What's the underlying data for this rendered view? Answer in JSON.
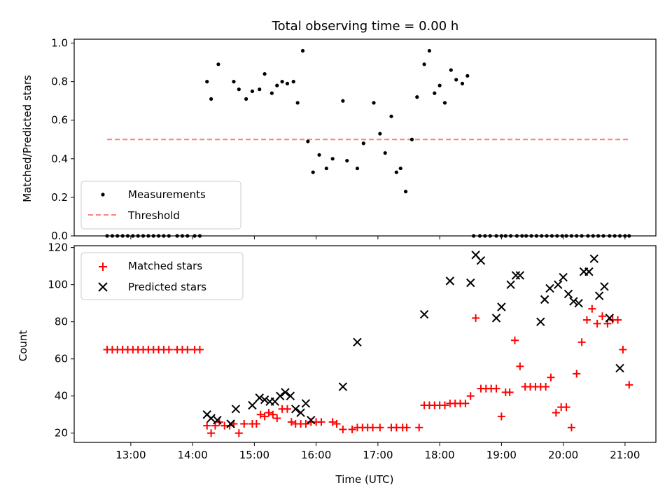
{
  "chart_data": [
    {
      "type": "scatter",
      "title": "Total observing time = 0.00 h",
      "xlabel": "",
      "ylabel": "Matched/Predicted stars",
      "ylim": [
        0,
        1.02
      ],
      "yticks": [
        0.0,
        0.2,
        0.4,
        0.6,
        0.8,
        1.0
      ],
      "ytick_labels": [
        "0.0",
        "0.2",
        "0.4",
        "0.6",
        "0.8",
        "1.0"
      ],
      "grid": false,
      "legend_position": "lower-left",
      "series": [
        {
          "name": "Measurements",
          "kind": "points",
          "marker": "dot",
          "color": "#000000",
          "x": [
            "12:37",
            "12:42",
            "12:47",
            "12:52",
            "12:57",
            "13:02",
            "13:07",
            "13:12",
            "13:17",
            "13:22",
            "13:27",
            "13:32",
            "13:37",
            "13:45",
            "13:50",
            "13:55",
            "14:02",
            "14:07",
            "14:14",
            "14:18",
            "14:25",
            "14:40",
            "14:45",
            "14:52",
            "14:58",
            "15:05",
            "15:10",
            "15:17",
            "15:22",
            "15:27",
            "15:32",
            "15:38",
            "15:42",
            "15:47",
            "15:52",
            "15:57",
            "16:03",
            "16:10",
            "16:16",
            "16:26",
            "16:30",
            "16:40",
            "16:46",
            "16:56",
            "17:02",
            "17:07",
            "17:13",
            "17:18",
            "17:22",
            "17:27",
            "17:33",
            "17:38",
            "17:45",
            "17:50",
            "17:55",
            "18:00",
            "18:05",
            "18:11",
            "18:16",
            "18:22",
            "18:27",
            "18:33",
            "18:39",
            "18:44",
            "18:49",
            "18:55",
            "19:00",
            "19:04",
            "19:09",
            "19:15",
            "19:20",
            "19:24",
            "19:29",
            "19:34",
            "19:39",
            "19:44",
            "19:49",
            "19:54",
            "19:59",
            "20:03",
            "20:08",
            "20:13",
            "20:18",
            "20:24",
            "20:29",
            "20:34",
            "20:39",
            "20:45",
            "20:50",
            "20:55",
            "21:00",
            "21:04"
          ],
          "y": [
            0,
            0,
            0,
            0,
            0,
            0,
            0,
            0,
            0,
            0,
            0,
            0,
            0,
            0,
            0,
            0,
            0,
            0,
            0.8,
            0.71,
            0.89,
            0.8,
            0.76,
            0.71,
            0.75,
            0.76,
            0.84,
            0.74,
            0.78,
            0.8,
            0.79,
            0.8,
            0.69,
            0.96,
            0.49,
            0.33,
            0.42,
            0.35,
            0.4,
            0.7,
            0.39,
            0.35,
            0.48,
            0.69,
            0.53,
            0.43,
            0.62,
            0.33,
            0.35,
            0.23,
            0.5,
            0.72,
            0.89,
            0.96,
            0.74,
            0.78,
            0.69,
            0.86,
            0.81,
            0.79,
            0.83,
            0.0,
            0.0,
            0.0,
            0.0,
            0.0,
            0.0,
            0.0,
            0.0,
            0.0,
            0.0,
            0.0,
            0.0,
            0.0,
            0.0,
            0.0,
            0.0,
            0.0,
            0.0,
            0.0,
            0.0,
            0.0,
            0.0,
            0.0,
            0.0,
            0.0,
            0.0,
            0.0,
            0.0,
            0.0,
            0.0,
            0.0
          ]
        },
        {
          "name": "Threshold",
          "kind": "line",
          "style": "dashed",
          "color": "#ff7f7f",
          "x": [
            "12:37",
            "21:04"
          ],
          "y": [
            0.5,
            0.5
          ]
        }
      ]
    },
    {
      "type": "scatter",
      "title": "",
      "xlabel": "Time (UTC)",
      "ylabel": "Count",
      "ylim": [
        15,
        121
      ],
      "yticks": [
        20,
        40,
        60,
        80,
        100,
        120
      ],
      "ytick_labels": [
        "20",
        "40",
        "60",
        "80",
        "100",
        "120"
      ],
      "xlim": [
        "12:05",
        "21:30"
      ],
      "xticks": [
        "13:00",
        "14:00",
        "15:00",
        "16:00",
        "17:00",
        "18:00",
        "19:00",
        "20:00",
        "21:00"
      ],
      "xtick_labels": [
        "13:00",
        "14:00",
        "15:00",
        "16:00",
        "17:00",
        "18:00",
        "19:00",
        "20:00",
        "21:00"
      ],
      "grid": false,
      "legend_position": "upper-left",
      "series": [
        {
          "name": "Matched stars",
          "marker": "plus",
          "color": "#ff0000",
          "points": [
            [
              "12:37",
              65
            ],
            [
              "12:42",
              65
            ],
            [
              "12:47",
              65
            ],
            [
              "12:52",
              65
            ],
            [
              "12:57",
              65
            ],
            [
              "13:02",
              65
            ],
            [
              "13:07",
              65
            ],
            [
              "13:12",
              65
            ],
            [
              "13:17",
              65
            ],
            [
              "13:22",
              65
            ],
            [
              "13:27",
              65
            ],
            [
              "13:32",
              65
            ],
            [
              "13:37",
              65
            ],
            [
              "13:45",
              65
            ],
            [
              "13:50",
              65
            ],
            [
              "13:55",
              65
            ],
            [
              "14:02",
              65
            ],
            [
              "14:07",
              65
            ],
            [
              "14:14",
              24
            ],
            [
              "14:18",
              20
            ],
            [
              "14:22",
              24
            ],
            [
              "14:26",
              26
            ],
            [
              "14:31",
              24
            ],
            [
              "14:36",
              24
            ],
            [
              "14:40",
              25
            ],
            [
              "14:45",
              20
            ],
            [
              "14:50",
              25
            ],
            [
              "14:58",
              25
            ],
            [
              "15:02",
              25
            ],
            [
              "15:06",
              30
            ],
            [
              "15:10",
              29
            ],
            [
              "15:14",
              31
            ],
            [
              "15:18",
              30
            ],
            [
              "15:22",
              28
            ],
            [
              "15:27",
              33
            ],
            [
              "15:32",
              33
            ],
            [
              "15:36",
              26
            ],
            [
              "15:40",
              25
            ],
            [
              "15:45",
              25
            ],
            [
              "15:50",
              25
            ],
            [
              "15:55",
              26
            ],
            [
              "16:00",
              26
            ],
            [
              "16:05",
              26
            ],
            [
              "16:16",
              26
            ],
            [
              "16:20",
              25
            ],
            [
              "16:26",
              22
            ],
            [
              "16:35",
              22
            ],
            [
              "16:40",
              23
            ],
            [
              "16:45",
              23
            ],
            [
              "16:50",
              23
            ],
            [
              "16:55",
              23
            ],
            [
              "17:02",
              23
            ],
            [
              "17:13",
              23
            ],
            [
              "17:18",
              23
            ],
            [
              "17:24",
              23
            ],
            [
              "17:28",
              23
            ],
            [
              "17:40",
              23
            ],
            [
              "17:45",
              35
            ],
            [
              "17:50",
              35
            ],
            [
              "17:55",
              35
            ],
            [
              "18:00",
              35
            ],
            [
              "18:05",
              35
            ],
            [
              "18:10",
              36
            ],
            [
              "18:15",
              36
            ],
            [
              "18:20",
              36
            ],
            [
              "18:25",
              36
            ],
            [
              "18:30",
              40
            ],
            [
              "18:35",
              82
            ],
            [
              "18:40",
              44
            ],
            [
              "18:45",
              44
            ],
            [
              "18:50",
              44
            ],
            [
              "18:55",
              44
            ],
            [
              "19:00",
              29
            ],
            [
              "19:04",
              42
            ],
            [
              "19:08",
              42
            ],
            [
              "19:13",
              70
            ],
            [
              "19:18",
              56
            ],
            [
              "19:23",
              45
            ],
            [
              "19:28",
              45
            ],
            [
              "19:33",
              45
            ],
            [
              "19:38",
              45
            ],
            [
              "19:43",
              45
            ],
            [
              "19:48",
              50
            ],
            [
              "19:53",
              31
            ],
            [
              "19:58",
              34
            ],
            [
              "20:03",
              34
            ],
            [
              "20:08",
              23
            ],
            [
              "20:13",
              52
            ],
            [
              "20:18",
              69
            ],
            [
              "20:23",
              81
            ],
            [
              "20:28",
              87
            ],
            [
              "20:33",
              79
            ],
            [
              "20:38",
              83
            ],
            [
              "20:43",
              79
            ],
            [
              "20:48",
              81
            ],
            [
              "20:53",
              81
            ],
            [
              "20:58",
              65
            ],
            [
              "21:04",
              46
            ]
          ]
        },
        {
          "name": "Predicted stars",
          "marker": "x",
          "color": "#000000",
          "points": [
            [
              "14:14",
              30
            ],
            [
              "14:18",
              28
            ],
            [
              "14:24",
              27
            ],
            [
              "14:37",
              25
            ],
            [
              "14:42",
              33
            ],
            [
              "14:58",
              35
            ],
            [
              "15:05",
              39
            ],
            [
              "15:10",
              38
            ],
            [
              "15:15",
              37
            ],
            [
              "15:20",
              37
            ],
            [
              "15:25",
              40
            ],
            [
              "15:30",
              42
            ],
            [
              "15:35",
              40
            ],
            [
              "15:40",
              33
            ],
            [
              "15:45",
              31
            ],
            [
              "15:50",
              36
            ],
            [
              "15:55",
              27
            ],
            [
              "16:26",
              45
            ],
            [
              "16:40",
              69
            ],
            [
              "17:45",
              84
            ],
            [
              "18:10",
              102
            ],
            [
              "18:30",
              101
            ],
            [
              "18:35",
              116
            ],
            [
              "18:40",
              113
            ],
            [
              "18:55",
              82
            ],
            [
              "19:00",
              88
            ],
            [
              "19:09",
              100
            ],
            [
              "19:14",
              105
            ],
            [
              "19:18",
              105
            ],
            [
              "19:38",
              80
            ],
            [
              "19:42",
              92
            ],
            [
              "19:47",
              98
            ],
            [
              "19:55",
              100
            ],
            [
              "20:00",
              104
            ],
            [
              "20:05",
              95
            ],
            [
              "20:10",
              91
            ],
            [
              "20:15",
              90
            ],
            [
              "20:20",
              107
            ],
            [
              "20:25",
              107
            ],
            [
              "20:30",
              114
            ],
            [
              "20:35",
              94
            ],
            [
              "20:40",
              99
            ],
            [
              "20:45",
              82
            ],
            [
              "20:55",
              55
            ]
          ]
        }
      ]
    }
  ]
}
